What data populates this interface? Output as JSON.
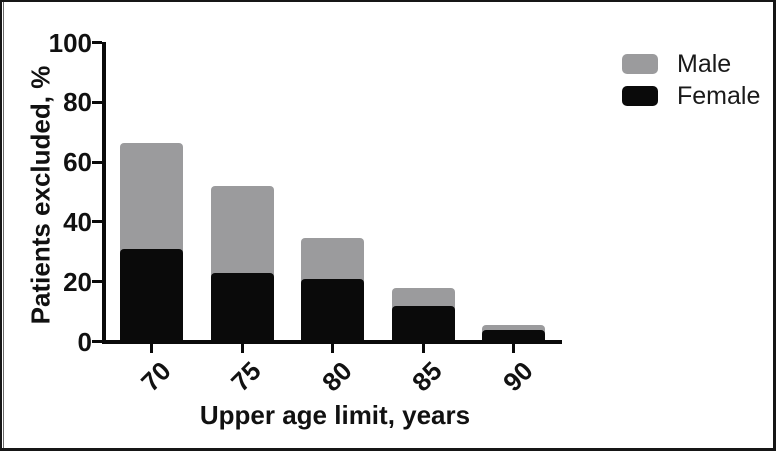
{
  "chart_data": {
    "type": "bar",
    "stacked": true,
    "categories": [
      "70",
      "75",
      "80",
      "85",
      "90"
    ],
    "series": [
      {
        "name": "Female",
        "color": "#0a0a0a",
        "values": [
          31,
          23,
          21,
          12,
          4
        ]
      },
      {
        "name": "Male",
        "color": "#9b9b9d",
        "values": [
          35.5,
          29,
          13.5,
          6,
          1.5
        ]
      }
    ],
    "stack_order_bottom_to_top": [
      "Female",
      "Male"
    ],
    "totals": [
      66.5,
      52,
      34.5,
      18,
      5.5
    ],
    "xlabel": "Upper age limit, years",
    "ylabel": "Patients excluded, %",
    "ylim": [
      0,
      100
    ],
    "yticks": [
      0,
      20,
      40,
      60,
      80,
      100
    ],
    "grid": false,
    "legend_position": "top-right",
    "legend": [
      {
        "label": "Male",
        "color": "#9b9b9d"
      },
      {
        "label": "Female",
        "color": "#0a0a0a"
      }
    ]
  }
}
